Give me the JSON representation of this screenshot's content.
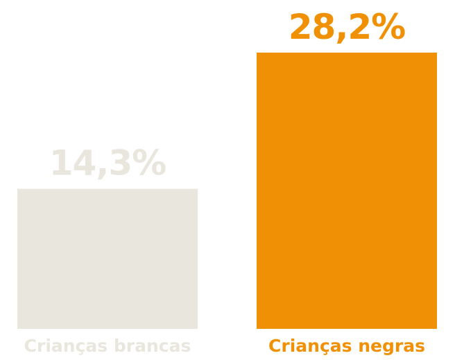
{
  "chart_data": {
    "type": "bar",
    "categories": [
      "Crianças brancas",
      "Crianças negras"
    ],
    "values": [
      14.3,
      28.2
    ],
    "value_labels": [
      "14,3%",
      "28,2%"
    ],
    "colors": [
      "#e9e7dd",
      "#f09105"
    ],
    "label_colors": [
      "#e9e7dd",
      "#f09105"
    ],
    "ylim": [
      0,
      28.2
    ],
    "title": "",
    "xlabel": "",
    "ylabel": "",
    "grid": false,
    "legend": "none"
  }
}
